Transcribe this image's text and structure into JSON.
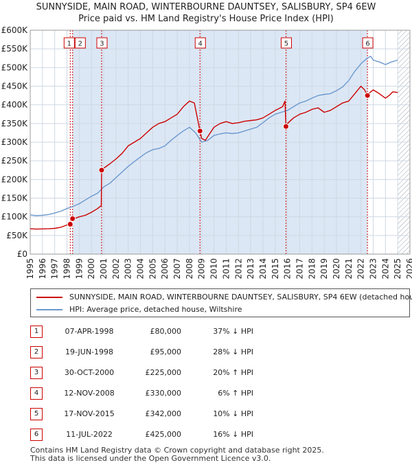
{
  "title_line1": "SUNNYSIDE, MAIN ROAD, WINTERBOURNE DAUNTSEY, SALISBURY, SP4 6EW",
  "title_line2": "Price paid vs. HM Land Registry's House Price Index (HPI)",
  "colors": {
    "property": "#cc0000",
    "hpi": "#6a98cf",
    "shade": "#dce7f5",
    "grid": "#cfd8e3",
    "vline": "#cc0000"
  },
  "chart_data": {
    "type": "line",
    "ylim": [
      0,
      600000
    ],
    "xlim": [
      1995,
      2026
    ],
    "y_ticks": [
      0,
      50000,
      100000,
      150000,
      200000,
      250000,
      300000,
      350000,
      400000,
      450000,
      500000,
      550000,
      600000
    ],
    "y_tick_labels": [
      "£0",
      "£50K",
      "£100K",
      "£150K",
      "£200K",
      "£250K",
      "£300K",
      "£350K",
      "£400K",
      "£450K",
      "£500K",
      "£550K",
      "£600K"
    ],
    "x_ticks": [
      1995,
      1996,
      1997,
      1998,
      1999,
      2000,
      2001,
      2002,
      2003,
      2004,
      2005,
      2006,
      2007,
      2008,
      2009,
      2010,
      2011,
      2012,
      2013,
      2014,
      2015,
      2016,
      2017,
      2018,
      2019,
      2020,
      2021,
      2022,
      2023,
      2024,
      2025,
      2026
    ],
    "grid": true,
    "future_hatch_from": 2025.0,
    "series": [
      {
        "name": "SUNNYSIDE, MAIN ROAD, WINTERBOURNE DAUNTSEY, SALISBURY, SP4 6EW (detached house)",
        "color": "#cc0000",
        "x": [
          1995.0,
          1995.5,
          1996.0,
          1996.5,
          1997.0,
          1997.5,
          1998.0,
          1998.27,
          1998.3,
          1998.46,
          1998.6,
          1999.0,
          1999.5,
          2000.0,
          2000.5,
          2000.8,
          2000.83,
          2001.0,
          2001.5,
          2002.0,
          2002.5,
          2003.0,
          2003.5,
          2004.0,
          2004.5,
          2005.0,
          2005.5,
          2006.0,
          2006.5,
          2007.0,
          2007.5,
          2008.0,
          2008.4,
          2008.86,
          2009.0,
          2009.3,
          2009.6,
          2010.0,
          2010.5,
          2011.0,
          2011.5,
          2012.0,
          2012.5,
          2013.0,
          2013.5,
          2014.0,
          2014.5,
          2015.0,
          2015.3,
          2015.6,
          2015.8,
          2015.88,
          2016.0,
          2016.5,
          2017.0,
          2017.5,
          2018.0,
          2018.5,
          2019.0,
          2019.5,
          2020.0,
          2020.5,
          2021.0,
          2021.5,
          2022.0,
          2022.3,
          2022.53,
          2022.8,
          2023.0,
          2023.5,
          2024.0,
          2024.3,
          2024.6,
          2025.0
        ],
        "y": [
          68000,
          67000,
          67500,
          68000,
          69000,
          72000,
          78000,
          80000,
          88000,
          95000,
          95000,
          100000,
          104000,
          112000,
          122000,
          130000,
          225000,
          230000,
          242000,
          255000,
          270000,
          290000,
          300000,
          310000,
          325000,
          340000,
          350000,
          355000,
          365000,
          375000,
          395000,
          410000,
          405000,
          330000,
          310000,
          305000,
          320000,
          340000,
          350000,
          355000,
          350000,
          352000,
          356000,
          358000,
          360000,
          365000,
          375000,
          385000,
          390000,
          395000,
          410000,
          342000,
          350000,
          365000,
          375000,
          380000,
          388000,
          392000,
          380000,
          385000,
          395000,
          405000,
          410000,
          430000,
          450000,
          440000,
          425000,
          435000,
          440000,
          430000,
          418000,
          425000,
          435000,
          433000
        ]
      },
      {
        "name": "HPI: Average price, detached house, Wiltshire",
        "color": "#6a98cf",
        "x": [
          1995.0,
          1995.5,
          1996.0,
          1996.5,
          1997.0,
          1997.5,
          1998.0,
          1998.5,
          1999.0,
          1999.5,
          2000.0,
          2000.5,
          2001.0,
          2001.5,
          2002.0,
          2002.5,
          2003.0,
          2003.5,
          2004.0,
          2004.5,
          2005.0,
          2005.5,
          2006.0,
          2006.5,
          2007.0,
          2007.5,
          2008.0,
          2008.5,
          2009.0,
          2009.5,
          2010.0,
          2010.5,
          2011.0,
          2011.5,
          2012.0,
          2012.5,
          2013.0,
          2013.5,
          2014.0,
          2014.5,
          2015.0,
          2015.5,
          2016.0,
          2016.5,
          2017.0,
          2017.5,
          2018.0,
          2018.5,
          2019.0,
          2019.5,
          2020.0,
          2020.5,
          2021.0,
          2021.5,
          2022.0,
          2022.5,
          2022.8,
          2023.0,
          2023.5,
          2024.0,
          2024.5,
          2025.0
        ],
        "y": [
          105000,
          103000,
          104000,
          106000,
          110000,
          115000,
          122000,
          128000,
          135000,
          145000,
          155000,
          163000,
          180000,
          190000,
          205000,
          220000,
          235000,
          248000,
          260000,
          272000,
          280000,
          283000,
          290000,
          305000,
          318000,
          330000,
          340000,
          325000,
          300000,
          305000,
          318000,
          322000,
          325000,
          323000,
          325000,
          330000,
          335000,
          340000,
          352000,
          365000,
          375000,
          380000,
          385000,
          395000,
          405000,
          410000,
          418000,
          425000,
          428000,
          430000,
          438000,
          448000,
          465000,
          490000,
          510000,
          525000,
          530000,
          520000,
          515000,
          508000,
          515000,
          520000
        ]
      }
    ],
    "sales": [
      {
        "id": "1",
        "date": "07-APR-1998",
        "x": 1998.27,
        "price": "£80,000",
        "value": 80000,
        "hpi": "37% ↓ HPI"
      },
      {
        "id": "2",
        "date": "19-JUN-1998",
        "x": 1998.46,
        "price": "£95,000",
        "value": 95000,
        "hpi": "28% ↓ HPI"
      },
      {
        "id": "3",
        "date": "30-OCT-2000",
        "x": 2000.83,
        "price": "£225,000",
        "value": 225000,
        "hpi": "20% ↑ HPI"
      },
      {
        "id": "4",
        "date": "12-NOV-2008",
        "x": 2008.86,
        "price": "£330,000",
        "value": 330000,
        "hpi": "6% ↑ HPI"
      },
      {
        "id": "5",
        "date": "17-NOV-2015",
        "x": 2015.88,
        "price": "£342,000",
        "value": 342000,
        "hpi": "10% ↓ HPI"
      },
      {
        "id": "6",
        "date": "11-JUL-2022",
        "x": 2022.53,
        "price": "£425,000",
        "value": 425000,
        "hpi": "16% ↓ HPI"
      }
    ]
  },
  "legend": {
    "property_label": "SUNNYSIDE, MAIN ROAD, WINTERBOURNE DAUNTSEY, SALISBURY, SP4 6EW (detached house)",
    "hpi_label": "HPI: Average price, detached house, Wiltshire"
  },
  "footer": {
    "line1": "Contains HM Land Registry data © Crown copyright and database right 2025.",
    "line2": "This data is licensed under the Open Government Licence v3.0."
  }
}
